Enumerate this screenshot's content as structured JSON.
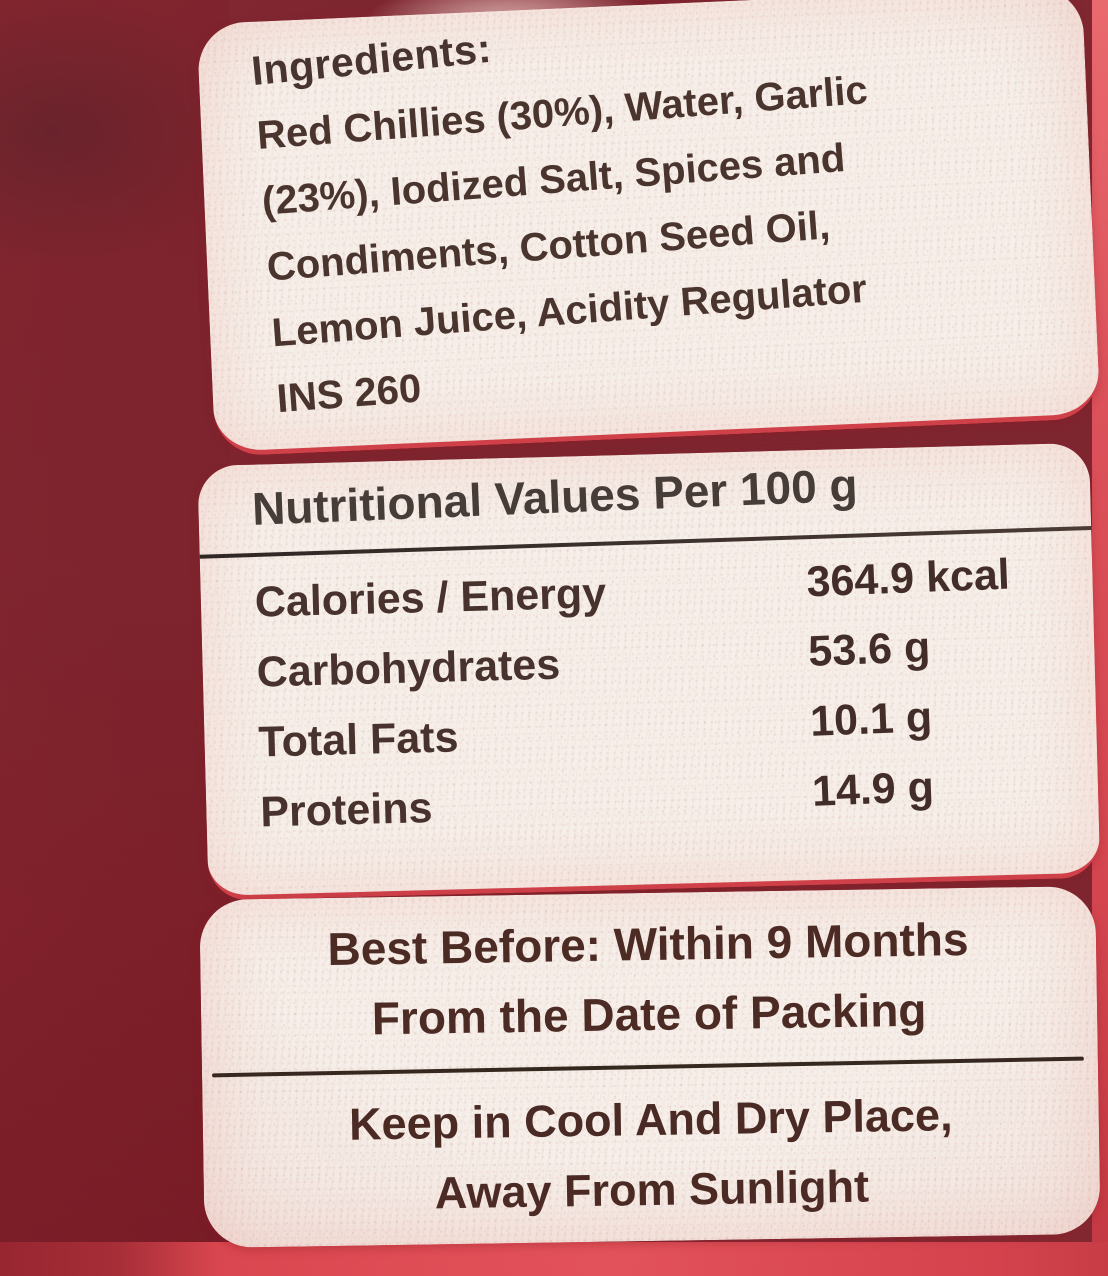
{
  "label": {
    "ingredients": {
      "heading": "Ingredients:",
      "lines": [
        "Red Chillies (30%), Water, Garlic",
        "(23%), Iodized Salt, Spices and",
        "Condiments, Cotton Seed Oil,",
        "Lemon Juice, Acidity Regulator",
        "INS 260"
      ]
    },
    "nutrition": {
      "heading": "Nutritional Values Per 100 g",
      "rows": [
        {
          "label": "Calories / Energy",
          "value": "364.9 kcal"
        },
        {
          "label": "Carbohydrates",
          "value": "53.6 g"
        },
        {
          "label": "Total Fats",
          "value": "10.1 g"
        },
        {
          "label": "Proteins",
          "value": "14.9 g"
        }
      ]
    },
    "best_before": {
      "line1": "Best Before: Within 9 Months",
      "line2": "From the Date of Packing"
    },
    "storage": {
      "line1": "Keep in Cool And Dry Place,",
      "line2": "Away From Sunlight"
    }
  },
  "colors": {
    "package_red": "#d75f67",
    "package_dark_red": "#9e2f3a",
    "package_bright_red": "#e04a54",
    "label_background": "#f6efe9",
    "text_brown": "#4a342e",
    "divider_dark": "#34281f",
    "section_border_red": "#cf4049"
  }
}
